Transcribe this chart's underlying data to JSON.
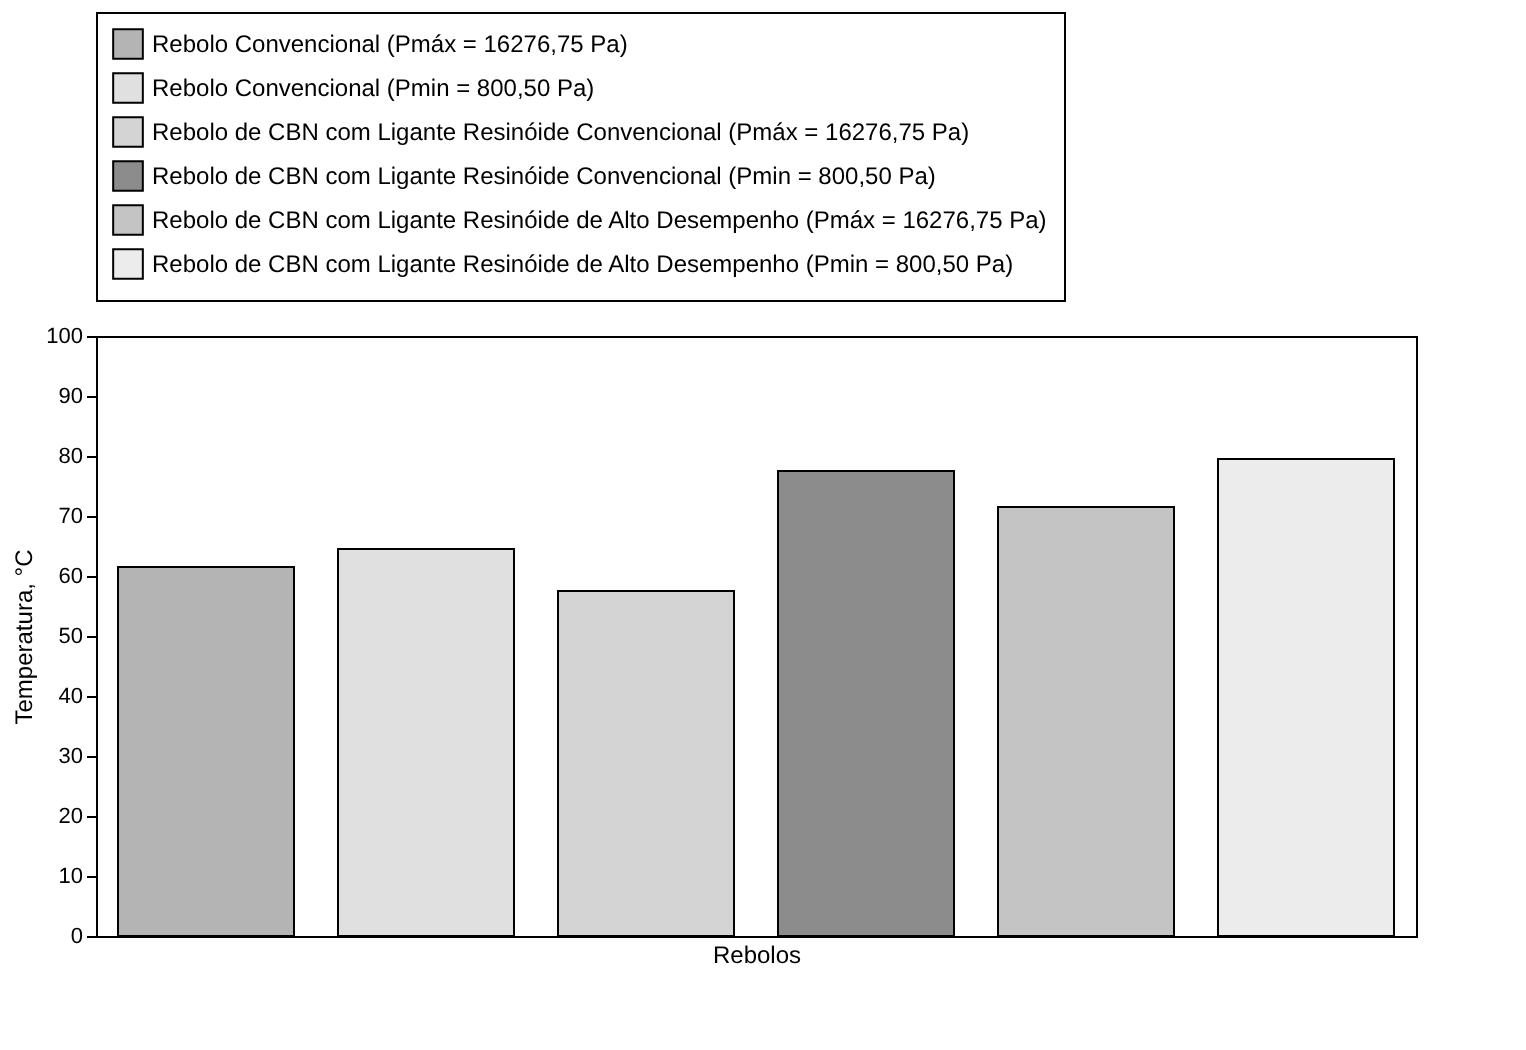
{
  "chart_data": {
    "type": "bar",
    "xlabel": "Rebolos",
    "ylabel": "Temperatura, °C",
    "categories": [
      null
    ],
    "series": [
      {
        "name": "Rebolo Convencional (Pmáx = 16276,75 Pa)",
        "color": "#b4b4b4",
        "values": [
          61.5
        ]
      },
      {
        "name": "Rebolo Convencional (Pmin = 800,50 Pa)",
        "color": "#e0e0e0",
        "values": [
          64.5
        ]
      },
      {
        "name": "Rebolo de CBN com Ligante Resinóide Convencional (Pmáx = 16276,75 Pa)",
        "color": "#d4d4d4",
        "values": [
          57.5
        ]
      },
      {
        "name": "Rebolo de CBN com Ligante Resinóide Convencional (Pmin = 800,50 Pa)",
        "color": "#8c8c8c",
        "values": [
          77.5
        ]
      },
      {
        "name": "Rebolo de CBN com Ligante Resinóide de Alto Desempenho (Pmáx = 16276,75 Pa)",
        "color": "#c4c4c4",
        "values": [
          71.5
        ]
      },
      {
        "name": "Rebolo de CBN com Ligante Resinóide de Alto Desempenho (Pmin = 800,50 Pa)",
        "color": "#ececec",
        "values": [
          79.5
        ]
      }
    ],
    "ylim": [
      0,
      100
    ],
    "yticks": [
      0,
      10,
      20,
      30,
      40,
      50,
      60,
      70,
      80,
      90,
      100
    ],
    "grid": false,
    "legend": "top",
    "tick_labels": "y"
  }
}
